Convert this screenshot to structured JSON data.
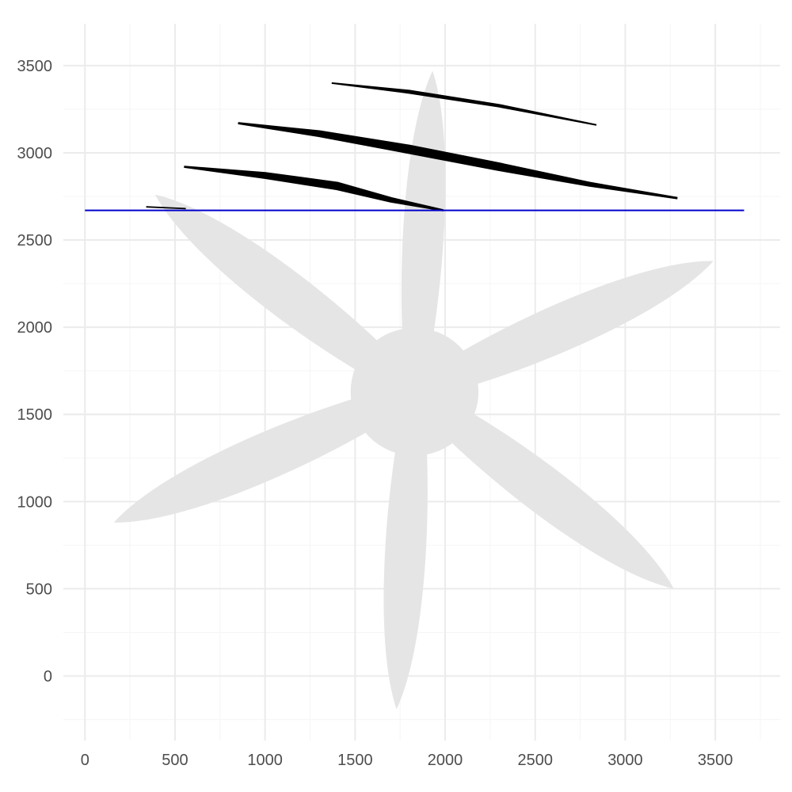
{
  "chart_data": {
    "type": "scatter",
    "title": "",
    "xlabel": "",
    "ylabel": "",
    "xlim": [
      -120,
      3860
    ],
    "ylim": [
      -370,
      3740
    ],
    "x_ticks": [
      0,
      500,
      1000,
      1500,
      2000,
      2500,
      3000,
      3500
    ],
    "y_ticks": [
      0,
      500,
      1000,
      1500,
      2000,
      2500,
      3000,
      3500
    ],
    "grid": true,
    "legend": "none",
    "colors": {
      "shape_fill": "#e5e5e5",
      "curve_fill": "#000000",
      "reference_line": "#0000cd",
      "grid": "#ebebeb"
    },
    "background_shape": {
      "name": "propeller",
      "hub": {
        "center": [
          1830,
          1630
        ],
        "radius": 355
      },
      "blades": [
        {
          "tip": [
            1930,
            3470
          ],
          "half_width": 130
        },
        {
          "tip": [
            3490,
            2380
          ],
          "half_width": 150
        },
        {
          "tip": [
            3270,
            500
          ],
          "half_width": 150
        },
        {
          "tip": [
            1730,
            -190
          ],
          "half_width": 130
        },
        {
          "tip": [
            160,
            880
          ],
          "half_width": 150
        },
        {
          "tip": [
            390,
            2760
          ],
          "half_width": 150
        }
      ]
    },
    "reference_line": {
      "y": 2670,
      "x_start": 0,
      "x_end": 3660
    },
    "curves": [
      {
        "points": [
          [
            340,
            2690
          ],
          [
            560,
            2680
          ]
        ],
        "max_thickness": 8
      },
      {
        "points": [
          [
            550,
            2920
          ],
          [
            1000,
            2870
          ],
          [
            1400,
            2810
          ],
          [
            1700,
            2730
          ],
          [
            1990,
            2670
          ]
        ],
        "max_thickness": 40
      },
      {
        "points": [
          [
            850,
            3170
          ],
          [
            1300,
            3110
          ],
          [
            1800,
            3020
          ],
          [
            2300,
            2920
          ],
          [
            2800,
            2820
          ],
          [
            3290,
            2740
          ]
        ],
        "max_thickness": 45
      },
      {
        "points": [
          [
            1370,
            3400
          ],
          [
            1800,
            3350
          ],
          [
            2300,
            3270
          ],
          [
            2840,
            3160
          ]
        ],
        "max_thickness": 16
      }
    ]
  }
}
